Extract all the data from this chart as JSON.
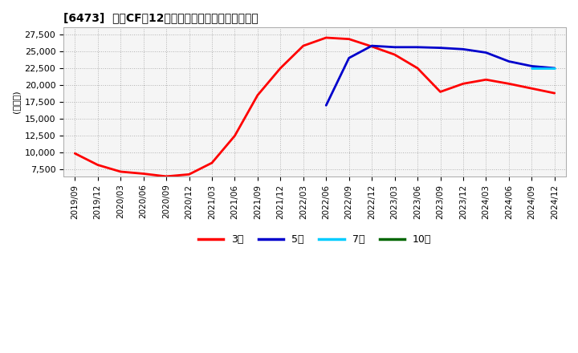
{
  "title": "[6473]  投資CFの12か月移動合計の標準偏差の推移",
  "ylabel": "(百万円)",
  "ylim": [
    6500,
    28500
  ],
  "yticks": [
    7500,
    10000,
    12500,
    15000,
    17500,
    20000,
    22500,
    25000,
    27500
  ],
  "background_color": "#ffffff",
  "plot_bg_color": "#f5f5f5",
  "line_colors": {
    "3年": "#ff0000",
    "5年": "#0000cc",
    "7年": "#00ccff",
    "10年": "#006600"
  },
  "dates": [
    "2019/09",
    "2019/12",
    "2020/03",
    "2020/06",
    "2020/09",
    "2020/12",
    "2021/03",
    "2021/06",
    "2021/09",
    "2021/12",
    "2022/03",
    "2022/06",
    "2022/09",
    "2022/12",
    "2023/03",
    "2023/06",
    "2023/09",
    "2023/12",
    "2024/03",
    "2024/06",
    "2024/09",
    "2024/12"
  ],
  "values_3y": [
    9900,
    8200,
    7200,
    6900,
    6500,
    6800,
    8500,
    12500,
    18500,
    22500,
    25800,
    27000,
    26800,
    25700,
    24500,
    22500,
    19000,
    20200,
    20800,
    20200,
    19500,
    18800
  ],
  "values_5y": [
    null,
    null,
    null,
    null,
    null,
    null,
    null,
    null,
    null,
    null,
    null,
    17000,
    24000,
    25800,
    25600,
    25600,
    25500,
    25300,
    24800,
    23500,
    22800,
    22500
  ],
  "values_7y": [
    null,
    null,
    null,
    null,
    null,
    null,
    null,
    null,
    null,
    null,
    null,
    null,
    null,
    null,
    null,
    null,
    null,
    null,
    null,
    null,
    22500,
    22500
  ],
  "values_10y": [
    null,
    null,
    null,
    null,
    null,
    null,
    null,
    null,
    null,
    null,
    null,
    null,
    null,
    null,
    null,
    null,
    null,
    null,
    null,
    null,
    null,
    null
  ],
  "legend_labels": [
    "3年",
    "5年",
    "7年",
    "10年"
  ]
}
